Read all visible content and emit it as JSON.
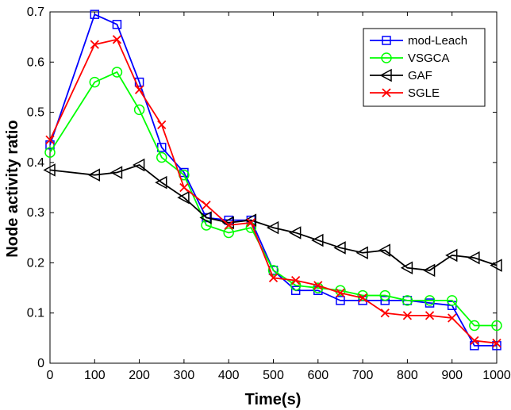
{
  "chart_data": {
    "type": "line",
    "xlabel": "Time(s)",
    "ylabel": "Node activity ratio",
    "xlim": [
      0,
      1000
    ],
    "ylim": [
      0,
      0.7
    ],
    "xticks": [
      0,
      100,
      200,
      300,
      400,
      500,
      600,
      700,
      800,
      900,
      1000
    ],
    "yticks": [
      0,
      0.1,
      0.2,
      0.3,
      0.4,
      0.5,
      0.6,
      0.7
    ],
    "grid": false,
    "legend_position": "top-right",
    "x": [
      0,
      100,
      150,
      200,
      250,
      300,
      350,
      400,
      450,
      500,
      550,
      600,
      650,
      700,
      750,
      800,
      850,
      900,
      950,
      1000
    ],
    "series": [
      {
        "name": "mod-Leach",
        "color": "#0000ff",
        "marker": "square",
        "values": [
          0.435,
          0.695,
          0.675,
          0.56,
          0.43,
          0.38,
          0.29,
          0.285,
          0.285,
          0.185,
          0.145,
          0.145,
          0.125,
          0.125,
          0.125,
          0.125,
          0.12,
          0.115,
          0.035,
          0.035
        ]
      },
      {
        "name": "VSGCA",
        "color": "#00ff00",
        "marker": "circle",
        "values": [
          0.42,
          0.56,
          0.58,
          0.505,
          0.41,
          0.375,
          0.275,
          0.26,
          0.27,
          0.185,
          0.155,
          0.15,
          0.145,
          0.135,
          0.135,
          0.125,
          0.125,
          0.125,
          0.075,
          0.075
        ]
      },
      {
        "name": "GAF",
        "color": "#000000",
        "marker": "triangle-left",
        "values": [
          0.385,
          0.375,
          0.38,
          0.395,
          0.36,
          0.33,
          0.29,
          0.28,
          0.285,
          0.27,
          0.26,
          0.245,
          0.23,
          0.22,
          0.225,
          0.19,
          0.185,
          0.215,
          0.21,
          0.195
        ]
      },
      {
        "name": "SGLE",
        "color": "#ff0000",
        "marker": "x",
        "values": [
          0.445,
          0.635,
          0.645,
          0.545,
          0.475,
          0.35,
          0.315,
          0.275,
          0.28,
          0.17,
          0.165,
          0.155,
          0.14,
          0.13,
          0.1,
          0.095,
          0.095,
          0.09,
          0.045,
          0.04
        ]
      }
    ]
  }
}
